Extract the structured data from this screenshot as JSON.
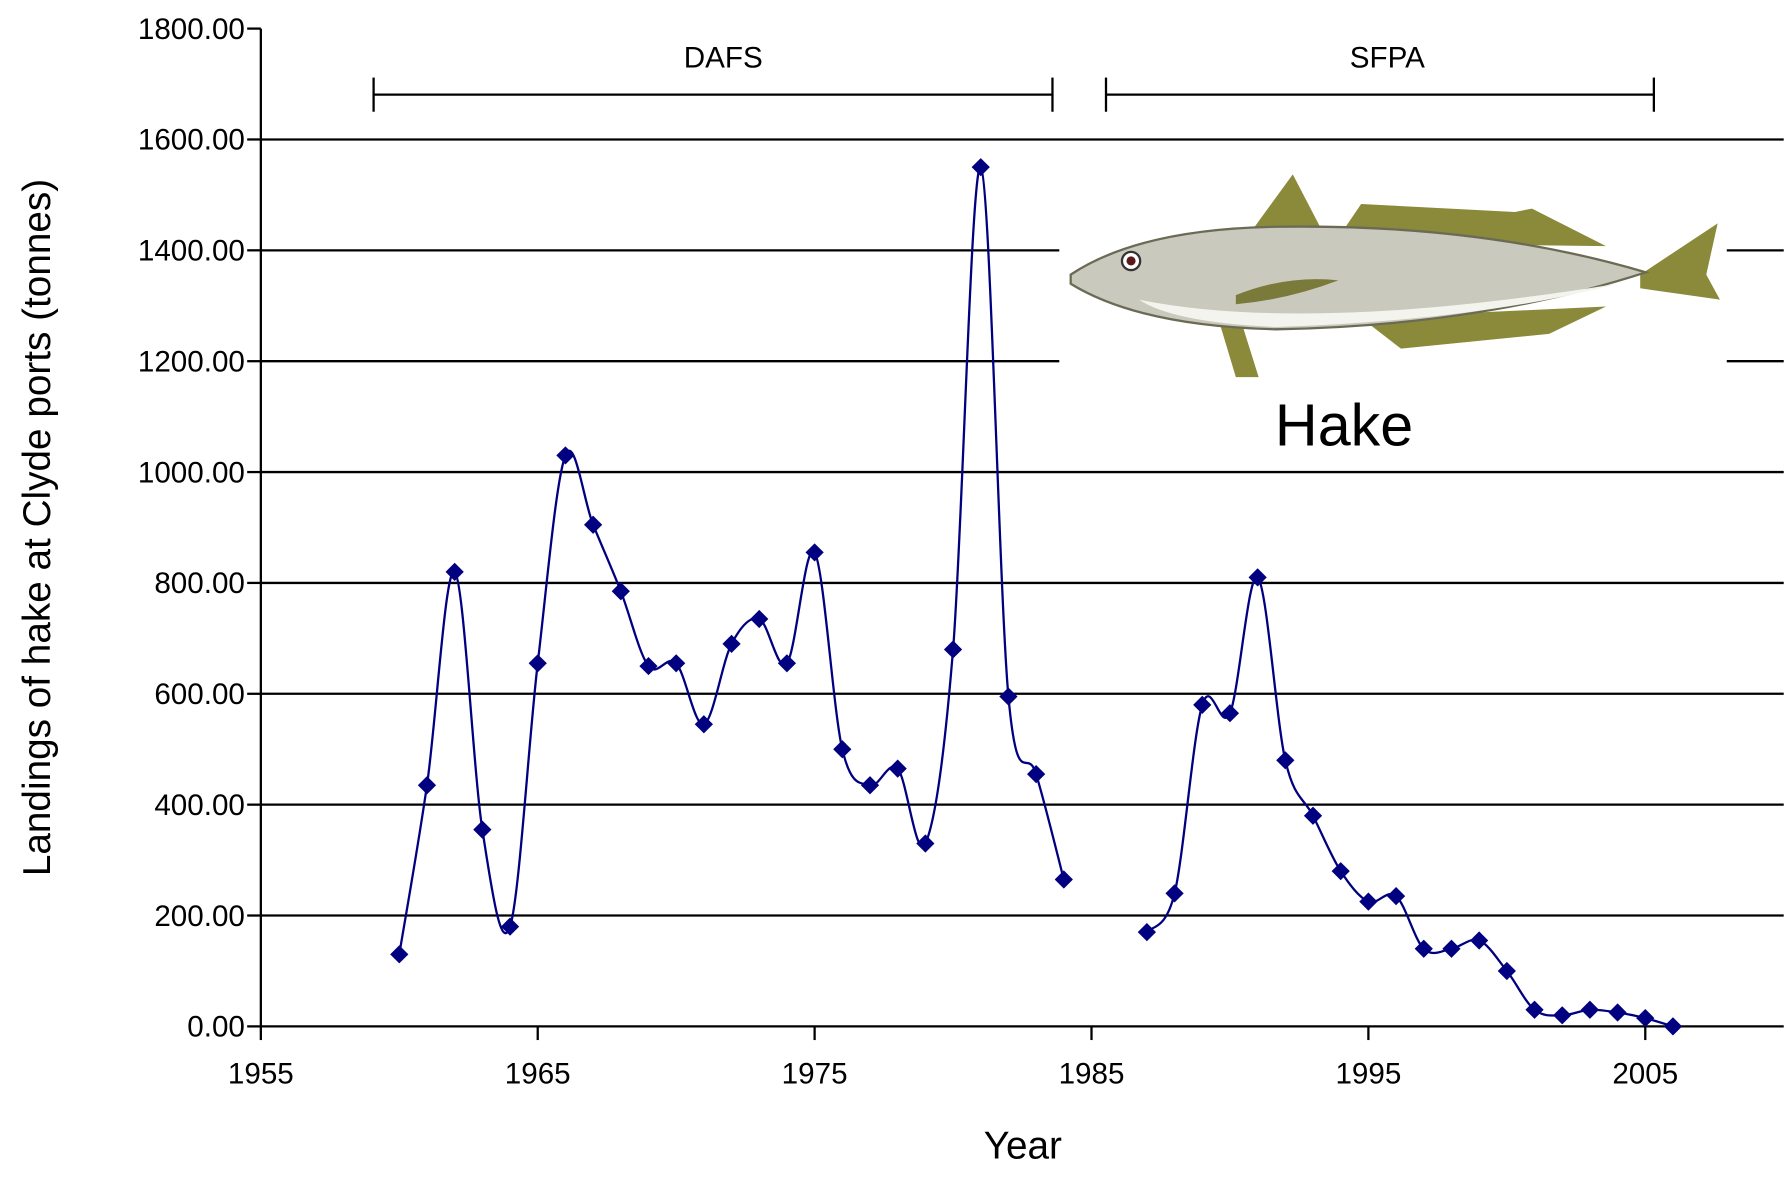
{
  "chart_data": {
    "type": "line",
    "x_label": "Year",
    "y_label": "Landings of hake at Clyde ports (tonnes)",
    "annotations": [
      "DAFS",
      "SFPA",
      "Hake"
    ],
    "x": [
      1960,
      1961,
      1962,
      1963,
      1964,
      1965,
      1966,
      1967,
      1968,
      1969,
      1970,
      1971,
      1972,
      1973,
      1974,
      1975,
      1976,
      1977,
      1978,
      1979,
      1980,
      1981,
      1982,
      1983,
      1984,
      1985,
      1986,
      1987,
      1988,
      1989,
      1990,
      1991,
      1992,
      1993,
      1994,
      1995,
      1996,
      1997,
      1998,
      1999,
      2000,
      2001,
      2002,
      2003,
      2004,
      2005,
      2006
    ],
    "series": [
      {
        "name": "Hake landings",
        "color": "#000080",
        "values": [
          130,
          435,
          820,
          355,
          180,
          655,
          1030,
          905,
          785,
          650,
          655,
          545,
          690,
          735,
          655,
          855,
          500,
          435,
          465,
          330,
          680,
          1550,
          595,
          455,
          265,
          null,
          null,
          170,
          240,
          580,
          565,
          810,
          480,
          380,
          280,
          225,
          235,
          140,
          140,
          155,
          100,
          30,
          20,
          30,
          25,
          15,
          0
        ]
      }
    ],
    "xlim": [
      1955,
      2010
    ],
    "xticks": [
      1955,
      1965,
      1975,
      1985,
      1995,
      2005
    ],
    "ylim": [
      0,
      1800
    ],
    "yticks": [
      {
        "value": 0,
        "label": "0.00"
      },
      {
        "value": 200,
        "label": "200.00"
      },
      {
        "value": 400,
        "label": "400.00"
      },
      {
        "value": 600,
        "label": "600.00"
      },
      {
        "value": 800,
        "label": "800.00"
      },
      {
        "value": 1000,
        "label": "1000.00"
      },
      {
        "value": 1200,
        "label": "1200.00"
      },
      {
        "value": 1400,
        "label": "1400.00"
      },
      {
        "value": 1600,
        "label": "1600.00"
      },
      {
        "value": 1800,
        "label": "1800.00"
      }
    ],
    "grid": true
  }
}
